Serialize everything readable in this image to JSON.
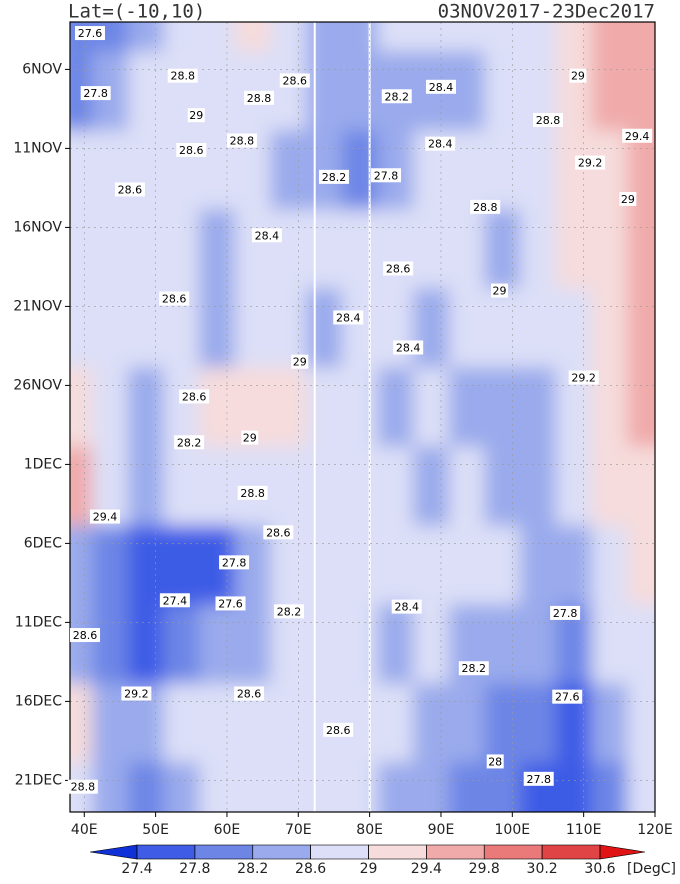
{
  "chart_data": {
    "type": "contour",
    "title": "Lat=(-10,10)",
    "subtitle": "03NOV2017-23Dec2017",
    "x": [
      40,
      45,
      50,
      55,
      60,
      65,
      70,
      75,
      80,
      85,
      90,
      95,
      100,
      105,
      110,
      115,
      120
    ],
    "y": [
      0,
      5,
      10,
      15,
      20,
      25,
      30,
      35,
      40,
      45,
      50
    ],
    "values": [
      [
        28.0,
        27.8,
        28.2,
        28.6,
        28.8,
        29.0,
        28.6,
        28.4,
        28.4,
        28.6,
        28.8,
        28.6,
        28.6,
        28.8,
        29.0,
        29.4,
        29.6
      ],
      [
        27.8,
        28.4,
        28.6,
        28.8,
        28.8,
        28.6,
        28.6,
        28.4,
        28.2,
        28.4,
        28.4,
        28.4,
        28.6,
        28.8,
        29.0,
        29.4,
        29.6
      ],
      [
        28.6,
        28.8,
        28.6,
        28.6,
        28.6,
        28.6,
        28.4,
        28.2,
        27.8,
        28.4,
        28.6,
        28.6,
        28.6,
        28.6,
        29.0,
        29.2,
        29.4
      ],
      [
        28.6,
        28.8,
        28.6,
        28.6,
        28.4,
        28.6,
        28.6,
        28.6,
        28.6,
        28.8,
        28.6,
        28.6,
        28.4,
        28.6,
        29.0,
        29.2,
        29.6
      ],
      [
        28.6,
        28.6,
        28.6,
        28.8,
        28.4,
        28.6,
        28.8,
        28.4,
        28.6,
        28.6,
        28.4,
        28.6,
        28.6,
        28.6,
        28.8,
        29.0,
        29.4
      ],
      [
        29.0,
        28.6,
        28.4,
        28.6,
        29.0,
        29.0,
        29.0,
        28.8,
        28.6,
        28.4,
        28.6,
        28.4,
        28.4,
        28.4,
        28.8,
        29.2,
        29.4
      ],
      [
        29.4,
        28.6,
        28.2,
        28.6,
        28.8,
        28.8,
        28.8,
        28.6,
        28.6,
        28.6,
        28.4,
        28.6,
        28.4,
        28.4,
        28.6,
        29.0,
        29.2
      ],
      [
        28.4,
        28.0,
        27.4,
        27.4,
        27.6,
        28.2,
        28.6,
        28.8,
        28.6,
        28.6,
        28.8,
        28.6,
        28.6,
        28.4,
        28.2,
        28.6,
        29.0
      ],
      [
        28.4,
        28.0,
        27.6,
        27.8,
        28.2,
        28.4,
        28.6,
        28.6,
        28.6,
        28.4,
        28.6,
        28.4,
        28.2,
        28.2,
        28.0,
        28.6,
        28.8
      ],
      [
        29.2,
        28.4,
        28.2,
        28.6,
        28.6,
        28.6,
        28.8,
        28.6,
        28.6,
        28.6,
        28.4,
        28.2,
        28.0,
        27.8,
        27.6,
        28.2,
        28.6
      ],
      [
        28.8,
        28.2,
        28.0,
        28.4,
        28.6,
        28.6,
        28.6,
        28.6,
        28.8,
        28.4,
        28.2,
        28.0,
        27.8,
        27.6,
        27.4,
        28.0,
        28.6
      ]
    ],
    "xlim": [
      38,
      120
    ],
    "ylim": [
      0,
      50
    ],
    "y_reversed": true,
    "grid": true,
    "xticks": [
      {
        "value": 40,
        "label": "40E"
      },
      {
        "value": 50,
        "label": "50E"
      },
      {
        "value": 60,
        "label": "60E"
      },
      {
        "value": 70,
        "label": "70E"
      },
      {
        "value": 80,
        "label": "80E"
      },
      {
        "value": 90,
        "label": "90E"
      },
      {
        "value": 100,
        "label": "100E"
      },
      {
        "value": 110,
        "label": "110E"
      },
      {
        "value": 120,
        "label": "120E"
      }
    ],
    "yticks": [
      {
        "value": 3,
        "label": "6NOV"
      },
      {
        "value": 8,
        "label": "11NOV"
      },
      {
        "value": 13,
        "label": "16NOV"
      },
      {
        "value": 18,
        "label": "21NOV"
      },
      {
        "value": 23,
        "label": "26NOV"
      },
      {
        "value": 28,
        "label": "1DEC"
      },
      {
        "value": 33,
        "label": "6DEC"
      },
      {
        "value": 38,
        "label": "11DEC"
      },
      {
        "value": 43,
        "label": "16DEC"
      },
      {
        "value": 48,
        "label": "21DEC"
      }
    ],
    "levels": [
      27.4,
      27.8,
      28.2,
      28.6,
      29,
      29.4,
      29.8,
      30.2,
      30.6
    ],
    "colors": [
      "#1030d8",
      "#3e5ce6",
      "#6d86e6",
      "#9aaaec",
      "#dcdff7",
      "#f6dcdc",
      "#f0aaaa",
      "#ea7a7a",
      "#e04444",
      "#e01414"
    ],
    "colorbar_unit": "[DegC]",
    "contour_labels": [
      {
        "x": 40.8,
        "y": 0.7,
        "value": 27.6
      },
      {
        "x": 53.8,
        "y": 3.4,
        "value": 28.8
      },
      {
        "x": 69.5,
        "y": 3.7,
        "value": 28.6
      },
      {
        "x": 83.8,
        "y": 4.7,
        "value": 28.2
      },
      {
        "x": 90,
        "y": 4.1,
        "value": 28.4
      },
      {
        "x": 109.2,
        "y": 3.4,
        "value": 29
      },
      {
        "x": 41.6,
        "y": 4.5,
        "value": 27.8
      },
      {
        "x": 64.5,
        "y": 4.8,
        "value": 28.8
      },
      {
        "x": 55.7,
        "y": 5.9,
        "value": 29
      },
      {
        "x": 105,
        "y": 6.2,
        "value": 28.8
      },
      {
        "x": 117.5,
        "y": 7.2,
        "value": 29.4
      },
      {
        "x": 55,
        "y": 8.1,
        "value": 28.6
      },
      {
        "x": 62.1,
        "y": 7.5,
        "value": 28.8
      },
      {
        "x": 89.9,
        "y": 7.7,
        "value": 28.4
      },
      {
        "x": 82.3,
        "y": 9.7,
        "value": 27.8
      },
      {
        "x": 75,
        "y": 9.8,
        "value": 28.2
      },
      {
        "x": 110.9,
        "y": 8.9,
        "value": 29.2
      },
      {
        "x": 46.4,
        "y": 10.6,
        "value": 28.6
      },
      {
        "x": 96.2,
        "y": 11.7,
        "value": 28.8
      },
      {
        "x": 116.2,
        "y": 11.2,
        "value": 29
      },
      {
        "x": 65.6,
        "y": 13.5,
        "value": 28.4
      },
      {
        "x": 84,
        "y": 15.6,
        "value": 28.6
      },
      {
        "x": 98.2,
        "y": 17,
        "value": 29
      },
      {
        "x": 52.6,
        "y": 17.5,
        "value": 28.6
      },
      {
        "x": 77,
        "y": 18.7,
        "value": 28.4
      },
      {
        "x": 70.2,
        "y": 21.5,
        "value": 29
      },
      {
        "x": 85.4,
        "y": 20.6,
        "value": 28.4
      },
      {
        "x": 110,
        "y": 22.5,
        "value": 29.2
      },
      {
        "x": 55.4,
        "y": 23.7,
        "value": 28.6
      },
      {
        "x": 54.7,
        "y": 26.6,
        "value": 28.2
      },
      {
        "x": 63.2,
        "y": 26.3,
        "value": 29
      },
      {
        "x": 63.6,
        "y": 29.8,
        "value": 28.8
      },
      {
        "x": 42.9,
        "y": 31.3,
        "value": 29.4
      },
      {
        "x": 67.2,
        "y": 32.3,
        "value": 28.6
      },
      {
        "x": 61,
        "y": 34.2,
        "value": 27.8
      },
      {
        "x": 52.7,
        "y": 36.6,
        "value": 27.4
      },
      {
        "x": 60.5,
        "y": 36.8,
        "value": 27.6
      },
      {
        "x": 68.7,
        "y": 37.3,
        "value": 28.2
      },
      {
        "x": 85.2,
        "y": 37,
        "value": 28.4
      },
      {
        "x": 107.4,
        "y": 37.4,
        "value": 27.8
      },
      {
        "x": 40.1,
        "y": 38.8,
        "value": 28.6
      },
      {
        "x": 94.6,
        "y": 40.9,
        "value": 28.2
      },
      {
        "x": 107.7,
        "y": 42.7,
        "value": 27.6
      },
      {
        "x": 47.3,
        "y": 42.5,
        "value": 29.2
      },
      {
        "x": 63.1,
        "y": 42.5,
        "value": 28.6
      },
      {
        "x": 75.6,
        "y": 44.8,
        "value": 28.6
      },
      {
        "x": 97.6,
        "y": 46.8,
        "value": 28
      },
      {
        "x": 103.7,
        "y": 47.9,
        "value": 27.8
      },
      {
        "x": 39.8,
        "y": 48.4,
        "value": 28.8
      }
    ]
  }
}
